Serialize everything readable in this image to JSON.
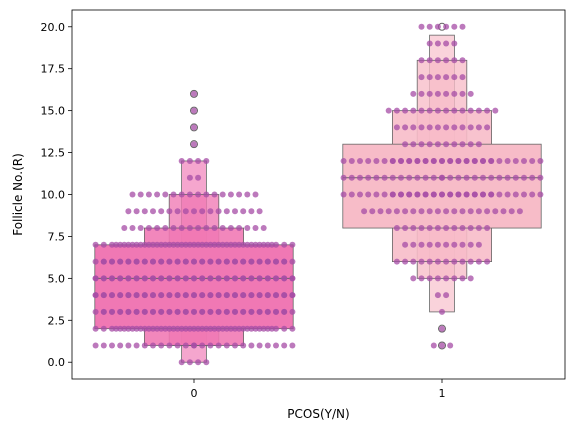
{
  "chart_data": {
    "type": "boxen+swarm",
    "xlabel": "PCOS(Y/N)",
    "ylabel": "Follicle No.(R)",
    "categories": [
      "0",
      "1"
    ],
    "ylim": [
      -1,
      21
    ],
    "yticks": [
      "0.0",
      "2.5",
      "5.0",
      "7.5",
      "10.0",
      "12.5",
      "15.0",
      "17.5",
      "20.0"
    ],
    "ytick_values": [
      0,
      2.5,
      5,
      7.5,
      10,
      12.5,
      15,
      17.5,
      20
    ],
    "grid": false,
    "colors": {
      "box_0": "#f078b4",
      "box_1": "#f7bcc8",
      "dots": "#a64ca6",
      "edge": "#666666"
    },
    "boxes": [
      {
        "category": "0",
        "median": 5,
        "levels": [
          {
            "low": 2,
            "high": 7,
            "halfwidth": 0.4
          },
          {
            "low": 1,
            "high": 8,
            "halfwidth": 0.2
          },
          {
            "low": 1,
            "high": 10,
            "halfwidth": 0.1
          },
          {
            "low": 0,
            "high": 12,
            "halfwidth": 0.05
          }
        ],
        "outliers": [
          13,
          14,
          15,
          16
        ],
        "swarm": [
          {
            "value": 0,
            "count": 4
          },
          {
            "value": 1,
            "count": 26
          },
          {
            "value": 2,
            "count": 45
          },
          {
            "value": 3,
            "count": 48
          },
          {
            "value": 4,
            "count": 50
          },
          {
            "value": 5,
            "count": 50
          },
          {
            "value": 6,
            "count": 48
          },
          {
            "value": 7,
            "count": 45
          },
          {
            "value": 8,
            "count": 18
          },
          {
            "value": 9,
            "count": 17
          },
          {
            "value": 10,
            "count": 16
          },
          {
            "value": 11,
            "count": 2
          },
          {
            "value": 12,
            "count": 4
          },
          {
            "value": 13,
            "count": 1
          },
          {
            "value": 14,
            "count": 1
          },
          {
            "value": 15,
            "count": 1
          },
          {
            "value": 16,
            "count": 1
          }
        ]
      },
      {
        "category": "1",
        "median": 11,
        "levels": [
          {
            "low": 8,
            "high": 13,
            "halfwidth": 0.4
          },
          {
            "low": 6,
            "high": 15,
            "halfwidth": 0.2
          },
          {
            "low": 5,
            "high": 18,
            "halfwidth": 0.1
          },
          {
            "low": 3,
            "high": 19.5,
            "halfwidth": 0.05
          }
        ],
        "outliers": [
          1,
          2,
          20
        ],
        "swarm": [
          {
            "value": 1,
            "count": 3
          },
          {
            "value": 2,
            "count": 1
          },
          {
            "value": 3,
            "count": 1
          },
          {
            "value": 4,
            "count": 2
          },
          {
            "value": 5,
            "count": 8
          },
          {
            "value": 6,
            "count": 12
          },
          {
            "value": 7,
            "count": 10
          },
          {
            "value": 8,
            "count": 12
          },
          {
            "value": 9,
            "count": 20
          },
          {
            "value": 10,
            "count": 38
          },
          {
            "value": 11,
            "count": 26
          },
          {
            "value": 12,
            "count": 38
          },
          {
            "value": 13,
            "count": 10
          },
          {
            "value": 14,
            "count": 12
          },
          {
            "value": 15,
            "count": 14
          },
          {
            "value": 16,
            "count": 8
          },
          {
            "value": 17,
            "count": 6
          },
          {
            "value": 18,
            "count": 6
          },
          {
            "value": 19,
            "count": 4
          },
          {
            "value": 20,
            "count": 6
          }
        ]
      }
    ]
  }
}
